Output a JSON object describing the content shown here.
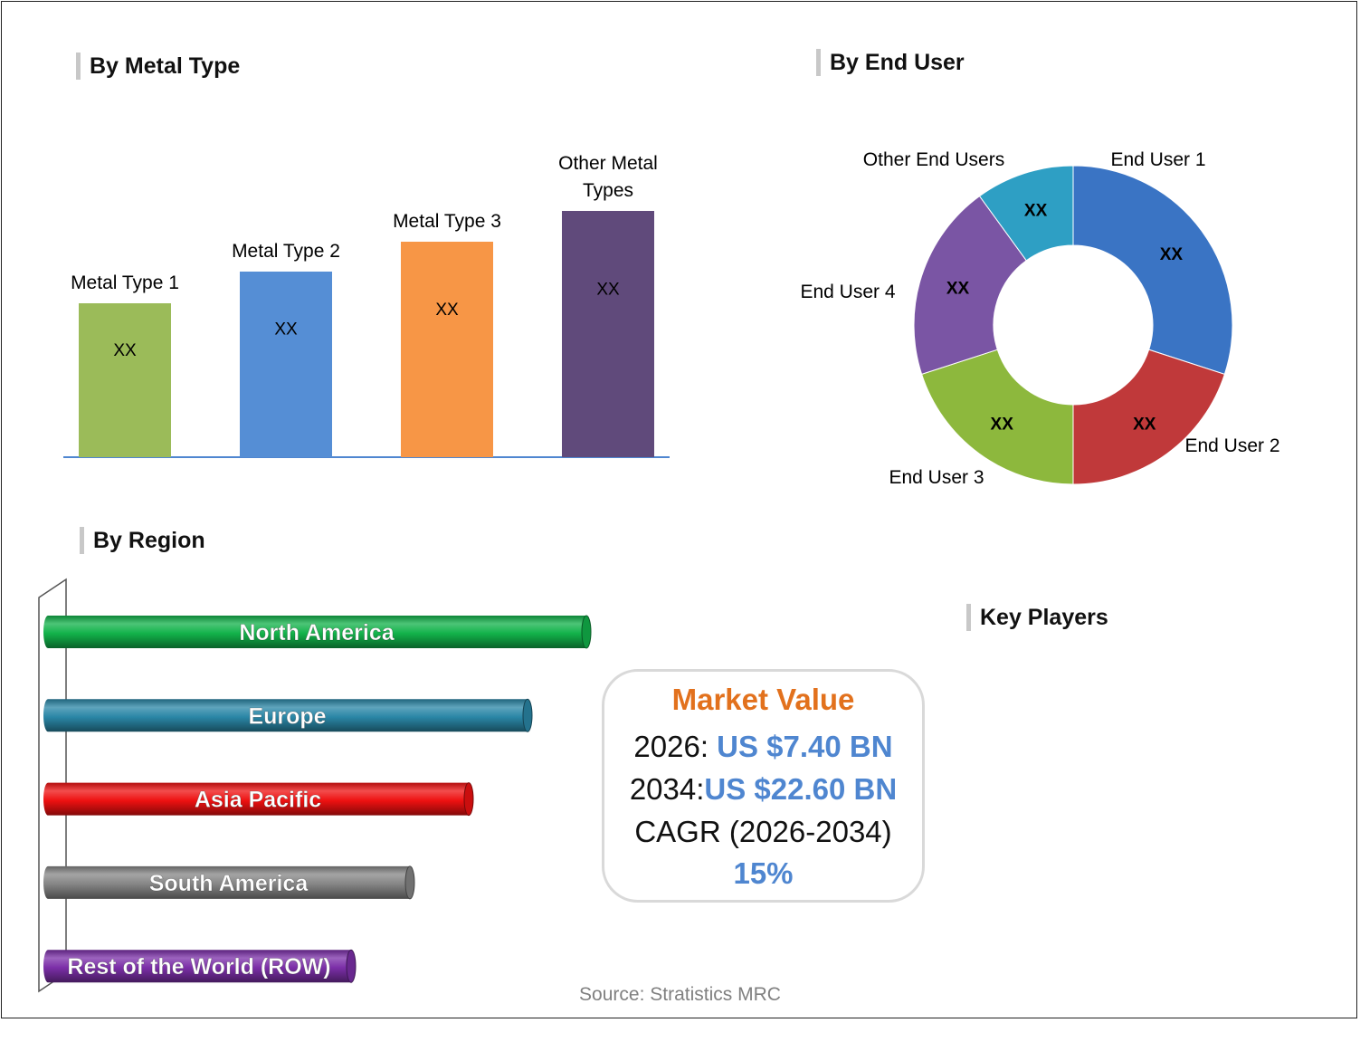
{
  "titles": {
    "metal_type": "By Metal Type",
    "end_user": "By End User",
    "region": "By Region",
    "key_players": "Key Players"
  },
  "colors": {
    "metal": [
      "#9bbb59",
      "#558ed5",
      "#f79646",
      "#604a7b"
    ],
    "end_user": [
      "#3a74c4",
      "#c0393a",
      "#8db83d",
      "#7a55a4",
      "#2e9fc4"
    ],
    "region": [
      "#12b24a",
      "#2a86a6",
      "#ee1111",
      "#858585",
      "#7b2fa8"
    ],
    "accent_orange": "#e2711d",
    "accent_blue": "#4f86d0"
  },
  "chart_data": [
    {
      "type": "bar",
      "title": "By Metal Type",
      "categories": [
        [
          "Metal Type 1"
        ],
        [
          "Metal Type 2"
        ],
        [
          "Metal Type 3"
        ],
        [
          "Other Metal",
          "Types"
        ]
      ],
      "values": [
        170,
        205,
        238,
        272
      ],
      "data_labels": [
        "XX",
        "XX",
        "XX",
        "XX"
      ]
    },
    {
      "type": "pie",
      "title": "By End User",
      "categories": [
        "End User 1",
        "End User 2",
        "End User 3",
        "End User 4",
        "Other End Users"
      ],
      "values": [
        30,
        20,
        20,
        20,
        10
      ],
      "data_labels": [
        "XX",
        "XX",
        "XX",
        "XX",
        "XX"
      ]
    },
    {
      "type": "bar",
      "title": "By Region",
      "categories": [
        "North America",
        "Europe",
        "Asia Pacific",
        "South America",
        "Rest of the World (ROW)"
      ],
      "values": [
        600,
        535,
        470,
        405,
        340
      ]
    }
  ],
  "market": {
    "title": "Market Value",
    "line1_label": "2026: ",
    "line1_value": "US $7.40 BN",
    "line2_label": "2034:",
    "line2_value": "US $22.60 BN",
    "line3": "CAGR (2026-2034)",
    "line4": "15%"
  },
  "source": "Source: Stratistics MRC"
}
